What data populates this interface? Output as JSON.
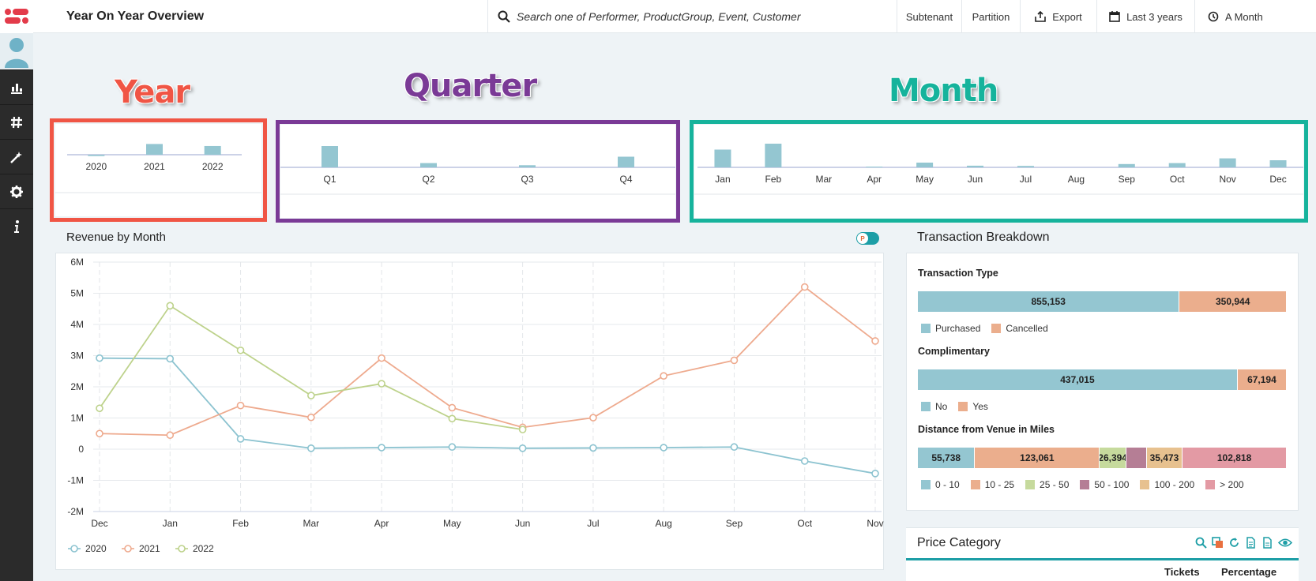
{
  "app": {
    "title": "Year On Year Overview"
  },
  "search": {
    "placeholder": "Search one of Performer, ProductGroup, Event, Customer"
  },
  "toolbar": {
    "subtenant": "Subtenant",
    "partition": "Partition",
    "export": "Export",
    "range": "Last 3 years",
    "period": "A Month"
  },
  "annotations": {
    "year": "Year",
    "quarter": "Quarter",
    "month": "Month"
  },
  "colors": {
    "year": "#f05545",
    "quarter": "#7a3a96",
    "month": "#16b39c",
    "teal": "#1d9ea6",
    "bar": "#94c6d1",
    "cancel": "#ebae8d"
  },
  "year_chart": {
    "categories": [
      "2020",
      "2021",
      "2022"
    ],
    "values": [
      -0.1,
      0.8,
      0.65
    ]
  },
  "quarter_chart": {
    "categories": [
      "Q1",
      "Q2",
      "Q3",
      "Q4"
    ],
    "values": [
      1.0,
      0.2,
      0.1,
      0.5
    ]
  },
  "month_chart": {
    "categories": [
      "Jan",
      "Feb",
      "Mar",
      "Apr",
      "May",
      "Jun",
      "Jul",
      "Aug",
      "Sep",
      "Oct",
      "Nov",
      "Dec"
    ],
    "values": [
      0.75,
      1.0,
      0,
      0.03,
      0.2,
      0.07,
      0.06,
      0,
      0.14,
      0.18,
      0.38,
      0.3
    ]
  },
  "revenue": {
    "title": "Revenue by Month",
    "toggle_glyph": "P"
  },
  "chart_data": {
    "type": "line",
    "title": "Revenue by Month",
    "categories": [
      "Dec",
      "Jan",
      "Feb",
      "Mar",
      "Apr",
      "May",
      "Jun",
      "Jul",
      "Aug",
      "Sep",
      "Oct",
      "Nov"
    ],
    "ylim": [
      -2000000,
      6000000
    ],
    "yticks": [
      "6M",
      "5M",
      "4M",
      "3M",
      "2M",
      "1M",
      "0",
      "-1M",
      "-2M"
    ],
    "grid": true,
    "legend_position": "bottom-left",
    "series": [
      {
        "name": "2020",
        "color": "#8cc3d0",
        "values": [
          2.92,
          2.9,
          0.33,
          0.03,
          0.05,
          0.07,
          0.03,
          0.04,
          0.05,
          0.07,
          -0.38,
          -0.78
        ]
      },
      {
        "name": "2021",
        "color": "#eeaa8e",
        "values": [
          0.5,
          0.45,
          1.4,
          1.02,
          2.92,
          1.33,
          0.7,
          1.01,
          2.35,
          2.85,
          5.2,
          3.47
        ]
      },
      {
        "name": "2022",
        "color": "#bdd28b",
        "values": [
          1.31,
          4.6,
          3.17,
          1.72,
          2.1,
          0.98,
          0.63,
          null,
          null,
          null,
          null,
          null
        ]
      }
    ]
  },
  "transactions": {
    "title": "Transaction Breakdown",
    "type": {
      "label": "Transaction Type",
      "segments": [
        {
          "value": "855,153",
          "n": 855153,
          "color": "#94c6d1",
          "legend": "Purchased"
        },
        {
          "value": "350,944",
          "n": 350944,
          "color": "#ebae8d",
          "legend": "Cancelled"
        }
      ]
    },
    "comp": {
      "label": "Complimentary",
      "segments": [
        {
          "value": "437,015",
          "n": 437015,
          "color": "#94c6d1",
          "legend": "No"
        },
        {
          "value": "67,194",
          "n": 67194,
          "color": "#ebae8d",
          "legend": "Yes"
        }
      ]
    },
    "distance": {
      "label": "Distance from Venue in Miles",
      "segments": [
        {
          "value": "55,738",
          "n": 55738,
          "color": "#94c6d1",
          "legend": "0 - 10"
        },
        {
          "value": "123,061",
          "n": 123061,
          "color": "#ebae8d",
          "legend": "10 - 25"
        },
        {
          "value": "26,394",
          "n": 26394,
          "color": "#c6da9d",
          "legend": "25 - 50"
        },
        {
          "value": "",
          "n": 20000,
          "color": "#b57e95",
          "legend": "50 - 100"
        },
        {
          "value": "35,473",
          "n": 35473,
          "color": "#e7c18f",
          "legend": "100 - 200"
        },
        {
          "value": "102,818",
          "n": 102818,
          "color": "#e39aa4",
          "legend": "> 200"
        }
      ]
    }
  },
  "price": {
    "title": "Price Category",
    "col_tickets": "Tickets",
    "col_percentage": "Percentage"
  }
}
